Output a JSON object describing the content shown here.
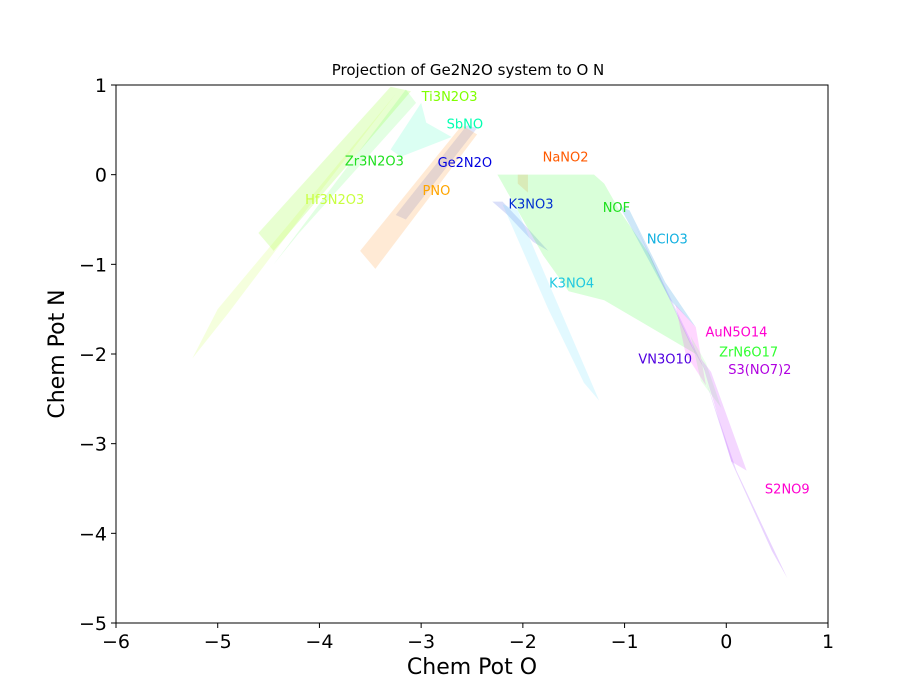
{
  "chart_data": {
    "type": "area",
    "title": "Projection of Ge2N2O system to O N",
    "xlabel": "Chem Pot O",
    "ylabel": "Chem Pot N",
    "xlim": [
      -6,
      1
    ],
    "ylim": [
      -5,
      1
    ],
    "xticks": [
      -6,
      -5,
      -4,
      -3,
      -2,
      -1,
      0,
      1
    ],
    "yticks": [
      -5,
      -4,
      -3,
      -2,
      -1,
      0,
      1
    ],
    "xtick_labels": [
      "−6",
      "−5",
      "−4",
      "−3",
      "−2",
      "−1",
      "0",
      "1"
    ],
    "ytick_labels": [
      "−5",
      "−4",
      "−3",
      "−2",
      "−1",
      "0",
      "1"
    ],
    "grid": false,
    "series": [
      {
        "name": "Ti3N2O3",
        "color": "#7fff00",
        "opacity": 0.18,
        "polygon": [
          [
            -3.3,
            0.98
          ],
          [
            -3.1,
            0.93
          ],
          [
            -4.45,
            -0.85
          ],
          [
            -4.6,
            -0.65
          ]
        ],
        "label_at": [
          -2.72,
          0.88
        ]
      },
      {
        "name": "Hf3N2O3",
        "color": "#c8ff40",
        "opacity": 0.18,
        "polygon": [
          [
            -3.25,
            0.9
          ],
          [
            -4.3,
            -0.55
          ],
          [
            -5.0,
            -1.5
          ],
          [
            -5.25,
            -2.05
          ],
          [
            -4.9,
            -1.55
          ],
          [
            -4.0,
            -0.2
          ]
        ],
        "label_at": [
          -3.85,
          -0.27
        ]
      },
      {
        "name": "Zr3N2O3",
        "color": "#40ff40",
        "opacity": 0.15,
        "polygon": [
          [
            -3.15,
            0.95
          ],
          [
            -4.45,
            -1.0
          ],
          [
            -4.2,
            -0.65
          ],
          [
            -3.05,
            0.8
          ]
        ],
        "label_at": [
          -3.46,
          0.16
        ]
      },
      {
        "name": "SbNO",
        "color": "#00ffaa",
        "opacity": 0.14,
        "polygon": [
          [
            -3.0,
            0.8
          ],
          [
            -2.95,
            0.58
          ],
          [
            -2.7,
            0.42
          ],
          [
            -3.2,
            0.2
          ],
          [
            -3.3,
            0.28
          ]
        ],
        "label_at": [
          -2.57,
          0.57
        ]
      },
      {
        "name": "Ge2N2O",
        "color": "#2040d0",
        "opacity": 0.15,
        "polygon": [
          [
            -2.55,
            0.55
          ],
          [
            -2.45,
            0.52
          ],
          [
            -3.15,
            -0.5
          ],
          [
            -3.25,
            -0.45
          ]
        ],
        "label_at": [
          -2.57,
          0.14
        ]
      },
      {
        "name": "PNO",
        "color": "#ffa040",
        "opacity": 0.22,
        "polygon": [
          [
            -2.6,
            0.55
          ],
          [
            -2.45,
            0.45
          ],
          [
            -3.45,
            -1.05
          ],
          [
            -3.6,
            -0.85
          ]
        ],
        "label_at": [
          -2.85,
          -0.17
        ]
      },
      {
        "name": "NaNO2",
        "color": "#ff6a00",
        "opacity": 0.16,
        "polygon": [
          [
            -2.05,
            0.0
          ],
          [
            -1.95,
            0.0
          ],
          [
            -1.95,
            -0.2
          ],
          [
            -2.05,
            -0.1
          ]
        ],
        "label_at": [
          -1.58,
          0.2
        ]
      },
      {
        "name": "K3NO3",
        "color": "#3050e0",
        "opacity": 0.18,
        "polygon": [
          [
            -2.3,
            -0.3
          ],
          [
            -2.2,
            -0.3
          ],
          [
            -1.95,
            -0.6
          ],
          [
            -1.75,
            -0.85
          ],
          [
            -1.9,
            -0.75
          ],
          [
            -2.15,
            -0.45
          ]
        ],
        "label_at": [
          -1.92,
          -0.32
        ]
      },
      {
        "name": "K3NO4",
        "color": "#60e0ff",
        "opacity": 0.18,
        "polygon": [
          [
            -2.2,
            -0.33
          ],
          [
            -2.05,
            -0.4
          ],
          [
            -1.75,
            -1.2
          ],
          [
            -1.25,
            -2.52
          ],
          [
            -1.4,
            -2.32
          ],
          [
            -1.75,
            -1.5
          ]
        ],
        "label_at": [
          -1.52,
          -1.2
        ]
      },
      {
        "name": "NOF",
        "color": "#40ff40",
        "opacity": 0.2,
        "polygon": [
          [
            -2.25,
            0.0
          ],
          [
            -1.3,
            0.0
          ],
          [
            -1.2,
            -0.1
          ],
          [
            -1.05,
            -0.4
          ],
          [
            -0.75,
            -0.9
          ],
          [
            -0.55,
            -1.4
          ],
          [
            -0.3,
            -2.0
          ],
          [
            -1.2,
            -1.4
          ],
          [
            -1.55,
            -1.3
          ],
          [
            -1.8,
            -0.9
          ]
        ],
        "label_at": [
          -1.08,
          -0.36
        ]
      },
      {
        "name": "NClO3",
        "color": "#2090e0",
        "opacity": 0.22,
        "polygon": [
          [
            -1.05,
            -0.35
          ],
          [
            -0.95,
            -0.4
          ],
          [
            -0.6,
            -1.2
          ],
          [
            -0.3,
            -1.7
          ],
          [
            -0.55,
            -1.4
          ]
        ],
        "label_at": [
          -0.58,
          -0.71
        ]
      },
      {
        "name": "VN3O10",
        "color": "#6020ff",
        "opacity": 0.15,
        "polygon": [
          [
            -0.9,
            -0.55
          ],
          [
            -0.75,
            -0.9
          ],
          [
            -0.2,
            -2.2
          ],
          [
            -0.35,
            -1.9
          ]
        ],
        "label_at": [
          -0.6,
          -2.05
        ]
      },
      {
        "name": "AuN5O14",
        "color": "#ff20ff",
        "opacity": 0.18,
        "polygon": [
          [
            -0.5,
            -1.45
          ],
          [
            -0.3,
            -1.7
          ],
          [
            -0.2,
            -2.35
          ],
          [
            -0.4,
            -2.0
          ]
        ],
        "label_at": [
          0.1,
          -1.75
        ]
      },
      {
        "name": "ZrN6O17",
        "color": "#40ff40",
        "opacity": 0.12,
        "polygon": [
          [
            -0.35,
            -1.8
          ],
          [
            -0.2,
            -2.1
          ],
          [
            -0.05,
            -2.6
          ],
          [
            -0.25,
            -2.3
          ]
        ],
        "label_at": [
          0.22,
          -1.97
        ]
      },
      {
        "name": "S3(NO7)2",
        "color": "#c020ff",
        "opacity": 0.18,
        "polygon": [
          [
            -0.25,
            -2.05
          ],
          [
            -0.15,
            -2.2
          ],
          [
            0.2,
            -3.3
          ],
          [
            0.05,
            -3.2
          ]
        ],
        "label_at": [
          0.33,
          -2.17
        ]
      },
      {
        "name": "S2NO9",
        "color": "#b060ff",
        "opacity": 0.28,
        "polygon": [
          [
            -0.2,
            -2.3
          ],
          [
            0.1,
            -3.3
          ],
          [
            0.6,
            -4.5
          ],
          [
            0.45,
            -4.2
          ],
          [
            0.05,
            -3.2
          ]
        ],
        "label_at": [
          0.6,
          -3.5
        ]
      }
    ],
    "label_colors": {
      "Ti3N2O3": "#7fff00",
      "SbNO": "#00ffb0",
      "Zr3N2O3": "#20e020",
      "Ge2N2O": "#0000e0",
      "Hf3N2O3": "#c8ff40",
      "PNO": "#ffa500",
      "NaNO2": "#ff5a00",
      "K3NO3": "#0030d0",
      "NOF": "#20e020",
      "NClO3": "#10b0e0",
      "K3NO4": "#20c8e0",
      "AuN5O14": "#ff00d0",
      "ZrN6O17": "#30ff30",
      "VN3O10": "#5000e0",
      "S3(NO7)2": "#b000e0",
      "S2NO9": "#ff00d0"
    }
  }
}
